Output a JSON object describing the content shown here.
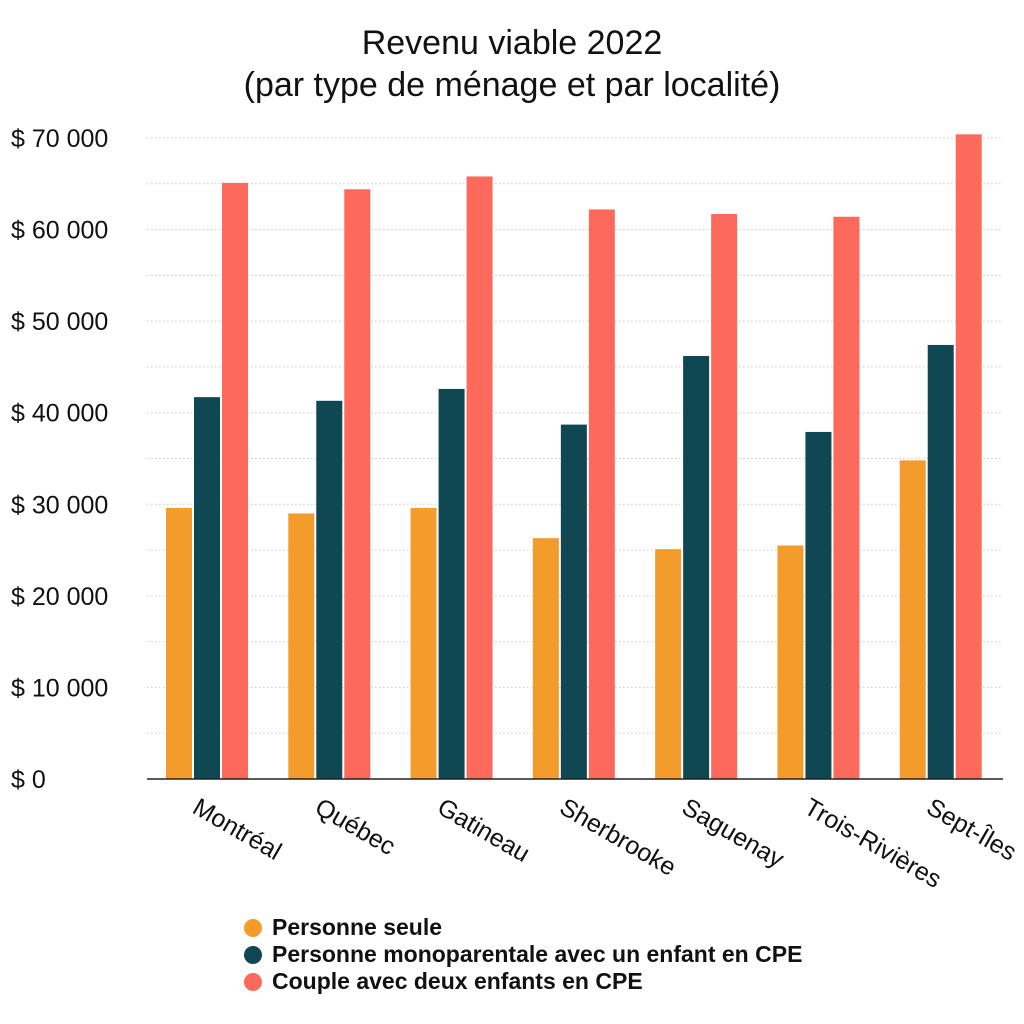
{
  "chart_data": {
    "type": "bar",
    "title": [
      "Revenu viable 2022",
      "(par type de ménage et par localité)"
    ],
    "categories": [
      "Montréal",
      "Québec",
      "Gatineau",
      "Sherbrooke",
      "Saguenay",
      "Trois-Rivières",
      "Sept-Îles"
    ],
    "series": [
      {
        "name": "Personne seule",
        "color": "#F39C2B",
        "values": [
          29600,
          29000,
          29600,
          26300,
          25100,
          25500,
          34800
        ]
      },
      {
        "name": "Personne monoparentale avec un enfant en CPE",
        "color": "#0F4752",
        "values": [
          41700,
          41300,
          42600,
          38700,
          46200,
          37900,
          47400
        ]
      },
      {
        "name": "Couple avec deux enfants en CPE",
        "color": "#FD6A5B",
        "values": [
          65100,
          64400,
          65800,
          62200,
          61700,
          61400,
          70400
        ]
      }
    ],
    "yticks": [
      {
        "value": 0,
        "label": "$ 0"
      },
      {
        "value": 10000,
        "label": "$ 10 000"
      },
      {
        "value": 20000,
        "label": "$ 20 000"
      },
      {
        "value": 30000,
        "label": "$ 30 000"
      },
      {
        "value": 40000,
        "label": "$ 40 000"
      },
      {
        "value": 50000,
        "label": "$ 50 000"
      },
      {
        "value": 60000,
        "label": "$ 60 000"
      },
      {
        "value": 70000,
        "label": "$ 70 000"
      }
    ],
    "ylim": [
      0,
      70000
    ],
    "minor_grid_step": 5000,
    "grid": true,
    "legend_position": "bottom",
    "xlabel": "",
    "ylabel": ""
  }
}
